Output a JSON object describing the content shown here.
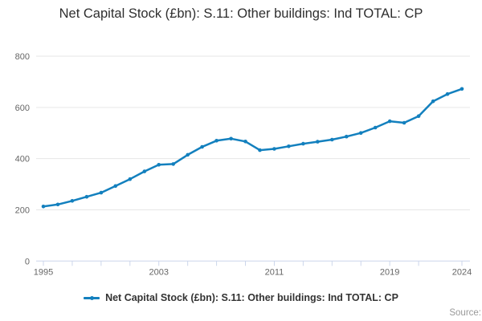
{
  "title": "Net Capital Stock (£bn): S.11: Other buildings: Ind TOTAL: CP",
  "legend": {
    "label": "Net Capital Stock (£bn): S.11: Other buildings: Ind TOTAL: CP"
  },
  "source": "Source:",
  "colors": {
    "line": "#1380BE",
    "grid": "#e6e6e6",
    "axis": "#ccd6eb",
    "tick_label": "#666666"
  },
  "chart_data": {
    "type": "line",
    "title": "Net Capital Stock (£bn): S.11: Other buildings: Ind TOTAL: CP",
    "xlabel": "",
    "ylabel": "",
    "x": [
      1995,
      1996,
      1997,
      1998,
      1999,
      2000,
      2001,
      2002,
      2003,
      2004,
      2005,
      2006,
      2007,
      2008,
      2009,
      2010,
      2011,
      2012,
      2013,
      2014,
      2015,
      2016,
      2017,
      2018,
      2019,
      2020,
      2021,
      2022,
      2023,
      2024
    ],
    "series": [
      {
        "name": "Net Capital Stock (£bn): S.11: Other buildings: Ind TOTAL: CP",
        "values": [
          213,
          221,
          235,
          251,
          267,
          293,
          320,
          350,
          376,
          379,
          415,
          446,
          470,
          478,
          467,
          433,
          438,
          448,
          458,
          466,
          474,
          486,
          500,
          521,
          546,
          540,
          566,
          624,
          652,
          672
        ]
      }
    ],
    "ylim": [
      0,
      800
    ],
    "yticks": [
      0,
      200,
      400,
      600,
      800
    ],
    "xtick_labels": [
      1995,
      2003,
      2011,
      2019,
      2024
    ],
    "xtick_minor_step": 2,
    "grid": true,
    "legend_position": "bottom",
    "marker": "circle"
  }
}
